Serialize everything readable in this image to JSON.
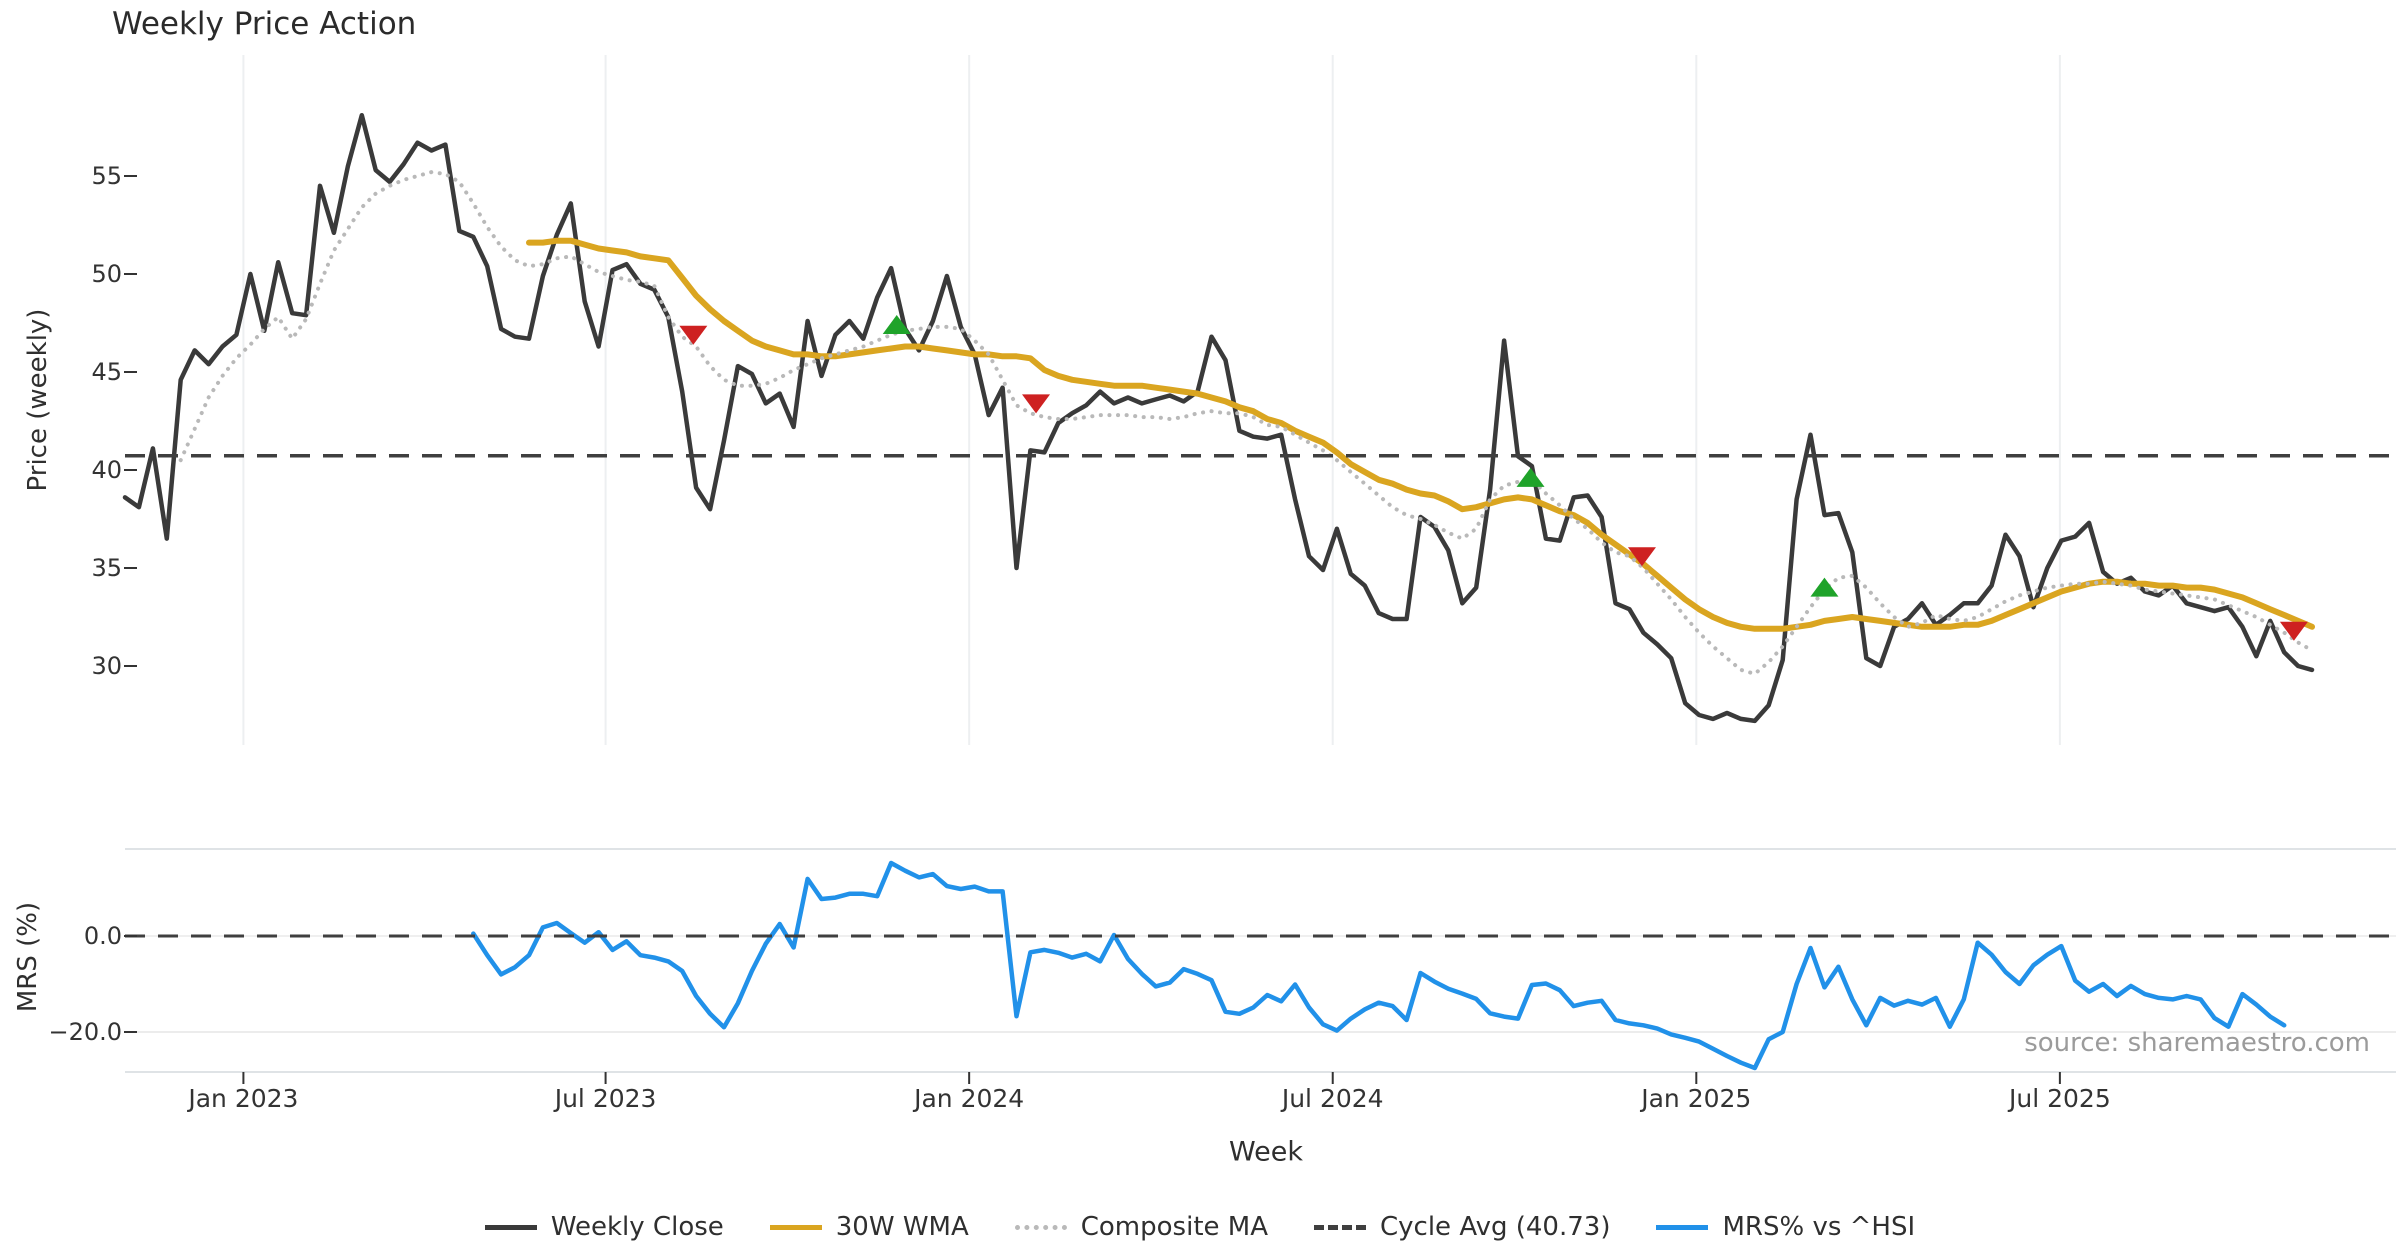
{
  "title": "Weekly Price Action",
  "source_note": "source: sharemaestro.com",
  "axis_labels": {
    "price": "Price (weekly)",
    "mrs": "MRS (%)",
    "week": "Week"
  },
  "colors": {
    "close": "#3A3A3A",
    "wma": "#DAA520",
    "composite": "#B9B9B9",
    "cycle": "#3F3F3F",
    "mrs": "#2191E9",
    "buy": "#1FA32A",
    "sell": "#CE2121",
    "grid": "#EDEFF1",
    "panel_border": "#DFE3E6",
    "tick_text": "#333333",
    "source_text": "#9B9B9B"
  },
  "legend": [
    {
      "label": "Weekly Close",
      "color_key": "close",
      "style": "solid"
    },
    {
      "label": "30W WMA",
      "color_key": "wma",
      "style": "solid"
    },
    {
      "label": "Composite MA",
      "color_key": "composite",
      "style": "dotted"
    },
    {
      "label": "Cycle Avg (40.73)",
      "color_key": "cycle",
      "style": "dashed"
    },
    {
      "label": "MRS% vs ^HSI",
      "color_key": "mrs",
      "style": "solid"
    }
  ],
  "chart_data": {
    "type": "line",
    "title": "Weekly Price Action",
    "x_axis": {
      "label": "Week",
      "tick_labels": [
        "Jan 2023",
        "Jul 2023",
        "Jan 2024",
        "Jul 2024",
        "Jan 2025",
        "Jul 2025"
      ],
      "tick_weeks": [
        8.5,
        34.5,
        60.6,
        86.7,
        112.8,
        138.9
      ]
    },
    "panels": [
      {
        "name": "price",
        "ylabel": "Price (weekly)",
        "ylim": [
          26.0,
          61.2
        ],
        "yticks": [
          30,
          35,
          40,
          45,
          50,
          55
        ],
        "grid_vertical": true,
        "cycle_avg": 40.73,
        "lines": [
          {
            "name": "Weekly Close",
            "color_key": "close",
            "style": "solid",
            "width": 4.5,
            "start_week": 0,
            "values": [
              38.6,
              38.1,
              41.1,
              36.5,
              44.6,
              46.1,
              45.4,
              46.3,
              46.9,
              50.0,
              47.1,
              50.6,
              48.0,
              47.9,
              54.5,
              52.1,
              55.5,
              58.1,
              55.3,
              54.7,
              55.6,
              56.7,
              56.3,
              56.6,
              52.2,
              51.9,
              50.4,
              47.2,
              46.8,
              46.7,
              49.9,
              52.0,
              53.6,
              48.6,
              46.3,
              50.2,
              50.5,
              49.5,
              49.2,
              47.8,
              44.0,
              39.1,
              38.0,
              41.5,
              45.3,
              44.9,
              43.4,
              43.9,
              42.2,
              47.6,
              44.8,
              46.9,
              47.6,
              46.7,
              48.8,
              50.3,
              47.2,
              46.1,
              47.6,
              49.9,
              47.3,
              45.9,
              42.8,
              44.2,
              35.0,
              41.0,
              40.9,
              42.4,
              42.9,
              43.3,
              44.0,
              43.4,
              43.7,
              43.4,
              43.6,
              43.8,
              43.5,
              44.0,
              46.8,
              45.6,
              42.0,
              41.7,
              41.6,
              41.8,
              38.5,
              35.6,
              34.9,
              37.0,
              34.7,
              34.1,
              32.7,
              32.4,
              32.4,
              37.6,
              37.1,
              35.9,
              33.2,
              34.0,
              39.0,
              46.6,
              40.7,
              40.2,
              36.5,
              36.4,
              38.6,
              38.7,
              37.6,
              33.2,
              32.9,
              31.7,
              31.1,
              30.4,
              28.1,
              27.5,
              27.3,
              27.6,
              27.3,
              27.2,
              28.0,
              30.3,
              38.5,
              41.8,
              37.7,
              37.8,
              35.8,
              30.4,
              30.0,
              32.0,
              32.4,
              33.2,
              32.1,
              32.6,
              33.2,
              33.2,
              34.1,
              36.7,
              35.6,
              33.0,
              35.0,
              36.4,
              36.6,
              37.3,
              34.8,
              34.2,
              34.5,
              33.8,
              33.6,
              34.1,
              33.2,
              33.0,
              32.8,
              33.0,
              32.0,
              30.5,
              32.3,
              30.7,
              30.0,
              29.8
            ]
          },
          {
            "name": "30W WMA",
            "color_key": "wma",
            "style": "solid",
            "width": 6,
            "start_week": 29,
            "values": [
              51.6,
              51.6,
              51.7,
              51.7,
              51.5,
              51.3,
              51.2,
              51.1,
              50.9,
              50.8,
              50.7,
              49.8,
              48.9,
              48.2,
              47.6,
              47.1,
              46.6,
              46.3,
              46.1,
              45.9,
              45.9,
              45.8,
              45.8,
              45.9,
              46.0,
              46.1,
              46.2,
              46.3,
              46.3,
              46.2,
              46.1,
              46.0,
              45.9,
              45.9,
              45.8,
              45.8,
              45.7,
              45.1,
              44.8,
              44.6,
              44.5,
              44.4,
              44.3,
              44.3,
              44.3,
              44.2,
              44.1,
              44.0,
              43.9,
              43.7,
              43.5,
              43.2,
              43.0,
              42.6,
              42.4,
              42.0,
              41.7,
              41.4,
              40.9,
              40.3,
              39.9,
              39.5,
              39.3,
              39.0,
              38.8,
              38.7,
              38.4,
              38.0,
              38.1,
              38.3,
              38.5,
              38.6,
              38.5,
              38.2,
              37.9,
              37.7,
              37.3,
              36.7,
              36.2,
              35.7,
              35.2,
              34.6,
              34.0,
              33.4,
              32.9,
              32.5,
              32.2,
              32.0,
              31.9,
              31.9,
              31.9,
              32.0,
              32.1,
              32.3,
              32.4,
              32.5,
              32.4,
              32.3,
              32.2,
              32.1,
              32.0,
              32.0,
              32.0,
              32.1,
              32.1,
              32.3,
              32.6,
              32.9,
              33.2,
              33.5,
              33.8,
              34.0,
              34.2,
              34.3,
              34.3,
              34.2,
              34.2,
              34.1,
              34.1,
              34.0,
              34.0,
              33.9,
              33.7,
              33.5,
              33.2,
              32.9,
              32.6,
              32.3,
              32.0
            ]
          },
          {
            "name": "Composite MA",
            "color_key": "composite",
            "style": "dotted",
            "width": 4,
            "start_week": 4,
            "values": [
              40.5,
              42.1,
              43.7,
              44.8,
              45.7,
              46.4,
              47.2,
              47.8,
              46.7,
              47.7,
              49.5,
              51.2,
              52.3,
              53.4,
              54.1,
              54.5,
              54.8,
              55.0,
              55.2,
              55.1,
              54.7,
              53.6,
              52.4,
              51.4,
              50.7,
              50.4,
              50.5,
              50.8,
              50.9,
              50.5,
              50.1,
              49.9,
              49.7,
              49.6,
              49.4,
              47.8,
              46.8,
              46.3,
              45.3,
              44.6,
              44.3,
              44.3,
              44.4,
              44.7,
              45.1,
              45.4,
              45.7,
              45.9,
              46.1,
              46.3,
              46.6,
              46.9,
              47.1,
              47.2,
              47.3,
              47.3,
              47.2,
              46.6,
              45.9,
              44.6,
              43.3,
              42.9,
              42.7,
              42.6,
              42.6,
              42.7,
              42.8,
              42.8,
              42.8,
              42.7,
              42.7,
              42.6,
              42.7,
              42.9,
              43.0,
              42.9,
              42.9,
              42.7,
              42.3,
              42.2,
              41.8,
              41.4,
              41.0,
              40.5,
              39.9,
              39.3,
              38.7,
              38.1,
              37.7,
              37.5,
              37.2,
              36.8,
              36.5,
              37.0,
              38.5,
              39.2,
              39.4,
              39.5,
              38.8,
              38.2,
              37.5,
              37.0,
              36.3,
              35.8,
              35.6,
              35.0,
              34.2,
              33.4,
              32.5,
              31.7,
              31.0,
              30.4,
              29.8,
              29.6,
              30.2,
              31.0,
              32.0,
              33.0,
              33.9,
              34.5,
              34.6,
              34.0,
              33.2,
              32.5,
              32.0,
              32.2,
              32.6,
              32.4,
              32.3,
              32.5,
              32.9,
              33.3,
              33.6,
              33.8,
              34.0,
              34.1,
              34.2,
              34.2,
              34.3,
              34.2,
              34.1,
              33.9,
              33.8,
              33.7,
              33.6,
              33.5,
              33.4,
              33.1,
              32.8,
              32.5,
              32.1,
              31.7,
              31.2,
              30.8
            ]
          },
          {
            "name": "Cycle Avg",
            "color_key": "cycle",
            "style": "dashed",
            "width": 3.5,
            "constant": 40.73
          }
        ],
        "markers": {
          "buy": {
            "color_key": "buy",
            "points": [
              {
                "week": 55.4,
                "value": 47.4
              },
              {
                "week": 100.9,
                "value": 39.6
              },
              {
                "week": 122.0,
                "value": 34.0
              }
            ]
          },
          "sell": {
            "color_key": "sell",
            "points": [
              {
                "week": 40.8,
                "value": 46.9
              },
              {
                "week": 65.4,
                "value": 43.4
              },
              {
                "week": 108.9,
                "value": 35.6
              },
              {
                "week": 155.7,
                "value": 31.8
              }
            ]
          }
        }
      },
      {
        "name": "mrs",
        "ylabel": "MRS (%)",
        "ylim": [
          -29.5,
          18.2
        ],
        "yticks": [
          0.0,
          -20.0
        ],
        "grid_vertical": false,
        "lines": [
          {
            "name": "MRS% vs ^HSI",
            "color_key": "mrs",
            "style": "solid",
            "width": 4.5,
            "start_week": 25,
            "values": [
              0.5,
              -4.0,
              -8.0,
              -6.5,
              -4.0,
              1.8,
              2.7,
              0.6,
              -1.4,
              0.8,
              -2.9,
              -1.1,
              -4.0,
              -4.5,
              -5.3,
              -7.3,
              -12.5,
              -16.2,
              -19.0,
              -14.0,
              -7.3,
              -1.6,
              2.5,
              -2.4,
              11.9,
              7.7,
              8.0,
              8.8,
              8.8,
              8.3,
              15.2,
              13.6,
              12.2,
              12.9,
              10.4,
              9.8,
              10.3,
              9.3,
              9.3,
              -16.7,
              -3.4,
              -2.9,
              -3.5,
              -4.5,
              -3.7,
              -5.3,
              0.2,
              -4.8,
              -7.9,
              -10.5,
              -9.7,
              -6.9,
              -7.9,
              -9.2,
              -15.8,
              -16.2,
              -14.9,
              -12.3,
              -13.6,
              -10.1,
              -14.9,
              -18.4,
              -19.7,
              -17.2,
              -15.3,
              -13.9,
              -14.6,
              -17.5,
              -7.7,
              -9.5,
              -11.0,
              -12.0,
              -13.1,
              -16.1,
              -16.8,
              -17.2,
              -10.2,
              -9.9,
              -11.3,
              -14.6,
              -13.9,
              -13.5,
              -17.5,
              -18.2,
              -18.6,
              -19.3,
              -20.5,
              -21.2,
              -22.0,
              -23.5,
              -25.0,
              -26.4,
              -27.5,
              -21.5,
              -20.0,
              -10.0,
              -2.5,
              -10.7,
              -6.4,
              -13.2,
              -18.6,
              -12.9,
              -14.5,
              -13.5,
              -14.3,
              -12.9,
              -18.9,
              -13.2,
              -1.4,
              -3.9,
              -7.5,
              -10.0,
              -6.1,
              -3.9,
              -2.1,
              -9.3,
              -11.6,
              -10.0,
              -12.5,
              -10.4,
              -12.1,
              -12.9,
              -13.2,
              -12.5,
              -13.2,
              -17.1,
              -18.9,
              -12.1,
              -14.3,
              -16.8,
              -18.6
            ]
          },
          {
            "name": "Zero",
            "color_key": "cycle",
            "style": "dashed",
            "width": 3,
            "constant": 0
          }
        ]
      }
    ]
  }
}
